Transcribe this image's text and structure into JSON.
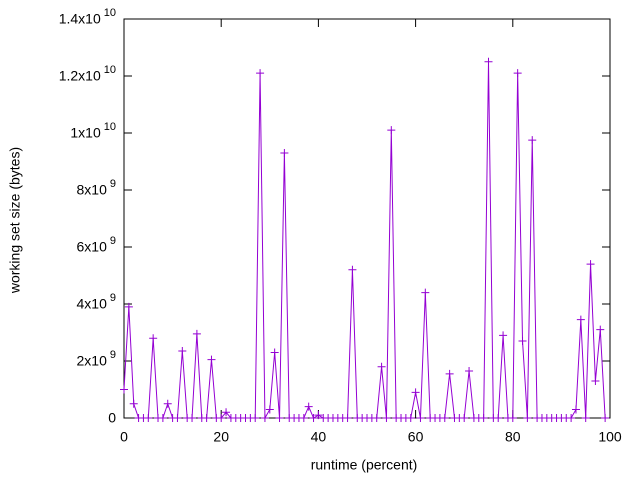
{
  "chart_data": {
    "type": "line",
    "xlabel": "runtime (percent)",
    "ylabel": "working set size (bytes)",
    "x": [
      0,
      1,
      2,
      3,
      4,
      5,
      6,
      7,
      8,
      9,
      10,
      11,
      12,
      13,
      14,
      15,
      16,
      17,
      18,
      19,
      20,
      21,
      22,
      23,
      24,
      25,
      26,
      27,
      28,
      29,
      30,
      31,
      32,
      33,
      34,
      35,
      36,
      37,
      38,
      39,
      40,
      41,
      42,
      43,
      44,
      45,
      46,
      47,
      48,
      49,
      50,
      51,
      52,
      53,
      54,
      55,
      56,
      57,
      58,
      59,
      60,
      61,
      62,
      63,
      64,
      65,
      66,
      67,
      68,
      69,
      70,
      71,
      72,
      73,
      74,
      75,
      76,
      77,
      78,
      79,
      80,
      81,
      82,
      83,
      84,
      85,
      86,
      87,
      88,
      89,
      90,
      91,
      92,
      93,
      94,
      95,
      96,
      97,
      98,
      99
    ],
    "series": [
      {
        "color": "#9400d3",
        "values": [
          1000000000.0,
          3900000000.0,
          500000000.0,
          0,
          0,
          0,
          2800000000.0,
          0,
          0,
          500000000.0,
          0,
          0,
          2350000000.0,
          0,
          0,
          2950000000.0,
          0,
          0,
          2050000000.0,
          0,
          0,
          200000000.0,
          0,
          0,
          0,
          0,
          0,
          0,
          12100000000.0,
          0,
          300000000.0,
          2300000000.0,
          0,
          9300000000.0,
          0,
          0,
          0,
          0,
          400000000.0,
          0,
          100000000.0,
          0,
          0,
          0,
          0,
          0,
          0,
          5200000000.0,
          0,
          0,
          0,
          0,
          0,
          1800000000.0,
          0,
          10100000000.0,
          0,
          0,
          0,
          0,
          900000000.0,
          0,
          4400000000.0,
          0,
          0,
          0,
          0,
          1550000000.0,
          0,
          0,
          0,
          1650000000.0,
          0,
          0,
          0,
          12500000000.0,
          0,
          0,
          2900000000.0,
          0,
          0,
          12100000000.0,
          2700000000.0,
          0,
          9750000000.0,
          0,
          0,
          0,
          0,
          0,
          0,
          0,
          0,
          300000000.0,
          3450000000.0,
          0,
          5400000000.0,
          1300000000.0,
          3100000000.0,
          0
        ]
      }
    ],
    "xlim": [
      0,
      100
    ],
    "xticks": [
      0,
      20,
      40,
      60,
      80,
      100
    ],
    "ylim": [
      0,
      14000000000.0
    ],
    "yticks": [
      0,
      {
        "value": 2000000000.0,
        "label": "2x10^9"
      },
      {
        "value": 4000000000.0,
        "label": "4x10^9"
      },
      {
        "value": 6000000000.0,
        "label": "6x10^9"
      },
      {
        "value": 8000000000.0,
        "label": "8x10^9"
      },
      {
        "value": 10000000000.0,
        "label": "1x10^10"
      },
      {
        "value": 12000000000.0,
        "label": "1.2x10^10"
      },
      {
        "value": 14000000000.0,
        "label": "1.4x10^10"
      }
    ],
    "grid": false
  }
}
